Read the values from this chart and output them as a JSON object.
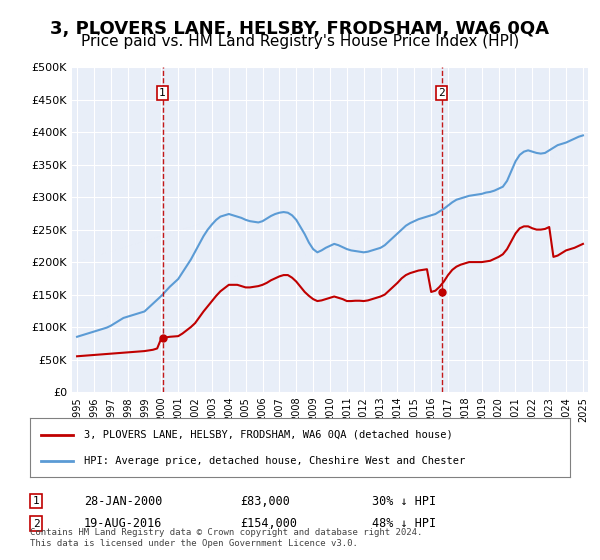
{
  "title": "3, PLOVERS LANE, HELSBY, FRODSHAM, WA6 0QA",
  "subtitle": "Price paid vs. HM Land Registry's House Price Index (HPI)",
  "title_fontsize": 13,
  "subtitle_fontsize": 11,
  "bg_color": "#e8eef8",
  "plot_bg_color": "#e8eef8",
  "ylim": [
    0,
    500000
  ],
  "yticks": [
    0,
    50000,
    100000,
    150000,
    200000,
    250000,
    300000,
    350000,
    400000,
    450000,
    500000
  ],
  "year_start": 1995,
  "year_end": 2025,
  "hpi_color": "#5b9bd5",
  "price_color": "#c00000",
  "vline_color": "#c00000",
  "marker_color": "#c00000",
  "legend_label_price": "3, PLOVERS LANE, HELSBY, FRODSHAM, WA6 0QA (detached house)",
  "legend_label_hpi": "HPI: Average price, detached house, Cheshire West and Chester",
  "transaction1_label": "1",
  "transaction1_date": "28-JAN-2000",
  "transaction1_price": "£83,000",
  "transaction1_note": "30% ↓ HPI",
  "transaction1_year": 2000.07,
  "transaction1_value": 83000,
  "transaction2_label": "2",
  "transaction2_date": "19-AUG-2016",
  "transaction2_price": "£154,000",
  "transaction2_note": "48% ↓ HPI",
  "transaction2_year": 2016.63,
  "transaction2_value": 154000,
  "footer": "Contains HM Land Registry data © Crown copyright and database right 2024.\nThis data is licensed under the Open Government Licence v3.0.",
  "hpi_years": [
    1995,
    1995.25,
    1995.5,
    1995.75,
    1996,
    1996.25,
    1996.5,
    1996.75,
    1997,
    1997.25,
    1997.5,
    1997.75,
    1998,
    1998.25,
    1998.5,
    1998.75,
    1999,
    1999.25,
    1999.5,
    1999.75,
    2000,
    2000.25,
    2000.5,
    2000.75,
    2001,
    2001.25,
    2001.5,
    2001.75,
    2002,
    2002.25,
    2002.5,
    2002.75,
    2003,
    2003.25,
    2003.5,
    2003.75,
    2004,
    2004.25,
    2004.5,
    2004.75,
    2005,
    2005.25,
    2005.5,
    2005.75,
    2006,
    2006.25,
    2006.5,
    2006.75,
    2007,
    2007.25,
    2007.5,
    2007.75,
    2008,
    2008.25,
    2008.5,
    2008.75,
    2009,
    2009.25,
    2009.5,
    2009.75,
    2010,
    2010.25,
    2010.5,
    2010.75,
    2011,
    2011.25,
    2011.5,
    2011.75,
    2012,
    2012.25,
    2012.5,
    2012.75,
    2013,
    2013.25,
    2013.5,
    2013.75,
    2014,
    2014.25,
    2014.5,
    2014.75,
    2015,
    2015.25,
    2015.5,
    2015.75,
    2016,
    2016.25,
    2016.5,
    2016.75,
    2017,
    2017.25,
    2017.5,
    2017.75,
    2018,
    2018.25,
    2018.5,
    2018.75,
    2019,
    2019.25,
    2019.5,
    2019.75,
    2020,
    2020.25,
    2020.5,
    2020.75,
    2021,
    2021.25,
    2021.5,
    2021.75,
    2022,
    2022.25,
    2022.5,
    2022.75,
    2023,
    2023.25,
    2023.5,
    2023.75,
    2024,
    2024.25,
    2024.5,
    2024.75,
    2025
  ],
  "hpi_values": [
    85000,
    87000,
    89000,
    91000,
    93000,
    95000,
    97000,
    99000,
    102000,
    106000,
    110000,
    114000,
    116000,
    118000,
    120000,
    122000,
    124000,
    130000,
    136000,
    142000,
    148000,
    155000,
    162000,
    168000,
    174000,
    184000,
    194000,
    204000,
    216000,
    228000,
    240000,
    250000,
    258000,
    265000,
    270000,
    272000,
    274000,
    272000,
    270000,
    268000,
    265000,
    263000,
    262000,
    261000,
    263000,
    267000,
    271000,
    274000,
    276000,
    277000,
    276000,
    272000,
    265000,
    254000,
    243000,
    230000,
    220000,
    215000,
    218000,
    222000,
    225000,
    228000,
    226000,
    223000,
    220000,
    218000,
    217000,
    216000,
    215000,
    216000,
    218000,
    220000,
    222000,
    226000,
    232000,
    238000,
    244000,
    250000,
    256000,
    260000,
    263000,
    266000,
    268000,
    270000,
    272000,
    274000,
    278000,
    282000,
    287000,
    292000,
    296000,
    298000,
    300000,
    302000,
    303000,
    304000,
    305000,
    307000,
    308000,
    310000,
    313000,
    316000,
    325000,
    340000,
    355000,
    365000,
    370000,
    372000,
    370000,
    368000,
    367000,
    368000,
    372000,
    376000,
    380000,
    382000,
    384000,
    387000,
    390000,
    393000,
    395000
  ],
  "price_years": [
    1995,
    1995.25,
    1995.5,
    1995.75,
    1996,
    1996.25,
    1996.5,
    1996.75,
    1997,
    1997.25,
    1997.5,
    1997.75,
    1998,
    1998.25,
    1998.5,
    1998.75,
    1999,
    1999.25,
    1999.5,
    1999.75,
    2000,
    2000.25,
    2000.5,
    2000.75,
    2001,
    2001.25,
    2001.5,
    2001.75,
    2002,
    2002.25,
    2002.5,
    2002.75,
    2003,
    2003.25,
    2003.5,
    2003.75,
    2004,
    2004.25,
    2004.5,
    2004.75,
    2005,
    2005.25,
    2005.5,
    2005.75,
    2006,
    2006.25,
    2006.5,
    2006.75,
    2007,
    2007.25,
    2007.5,
    2007.75,
    2008,
    2008.25,
    2008.5,
    2008.75,
    2009,
    2009.25,
    2009.5,
    2009.75,
    2010,
    2010.25,
    2010.5,
    2010.75,
    2011,
    2011.25,
    2011.5,
    2011.75,
    2012,
    2012.25,
    2012.5,
    2012.75,
    2013,
    2013.25,
    2013.5,
    2013.75,
    2014,
    2014.25,
    2014.5,
    2014.75,
    2015,
    2015.25,
    2015.5,
    2015.75,
    2016,
    2016.25,
    2016.5,
    2016.75,
    2017,
    2017.25,
    2017.5,
    2017.75,
    2018,
    2018.25,
    2018.5,
    2018.75,
    2019,
    2019.25,
    2019.5,
    2019.75,
    2020,
    2020.25,
    2020.5,
    2020.75,
    2021,
    2021.25,
    2021.5,
    2021.75,
    2022,
    2022.25,
    2022.5,
    2022.75,
    2023,
    2023.25,
    2023.5,
    2023.75,
    2024,
    2024.25,
    2024.5,
    2024.75,
    2025
  ],
  "price_values": [
    55000,
    55500,
    56000,
    56500,
    57000,
    57500,
    58000,
    58500,
    59000,
    59500,
    60000,
    60500,
    61000,
    61500,
    62000,
    62500,
    63000,
    64000,
    65000,
    67000,
    83000,
    84000,
    85000,
    85500,
    86000,
    90000,
    95000,
    100000,
    106000,
    115000,
    124000,
    132000,
    140000,
    148000,
    155000,
    160000,
    165000,
    165000,
    165000,
    163000,
    161000,
    161000,
    162000,
    163000,
    165000,
    168000,
    172000,
    175000,
    178000,
    180000,
    180000,
    176000,
    170000,
    162000,
    154000,
    148000,
    143000,
    140000,
    141000,
    143000,
    145000,
    147000,
    145000,
    143000,
    140000,
    140000,
    140500,
    140500,
    140000,
    141000,
    143000,
    145000,
    147000,
    150000,
    156000,
    162000,
    168000,
    175000,
    180000,
    183000,
    185000,
    187000,
    188000,
    189000,
    154000,
    156000,
    162000,
    170000,
    180000,
    188000,
    193000,
    196000,
    198000,
    200000,
    200000,
    200000,
    200000,
    201000,
    202000,
    205000,
    208000,
    212000,
    220000,
    232000,
    244000,
    252000,
    255000,
    255000,
    252000,
    250000,
    250000,
    251000,
    254000,
    208000,
    210000,
    214000,
    218000,
    220000,
    222000,
    225000,
    228000
  ]
}
